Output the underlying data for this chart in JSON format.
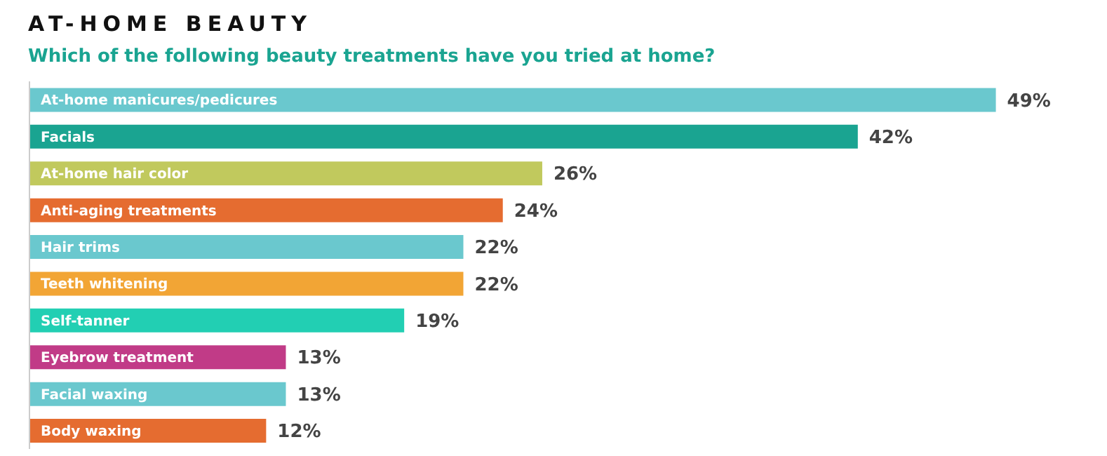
{
  "chart_data": {
    "type": "bar",
    "orientation": "horizontal",
    "title": "AT-HOME BEAUTY",
    "subtitle": "Which of the following beauty treatments have you tried at home?",
    "categories": [
      "At-home manicures/pedicures",
      "Facials",
      "At-home hair color",
      "Anti-aging treatments",
      "Hair trims",
      "Teeth whitening",
      "Self-tanner",
      "Eyebrow treatment",
      "Facial waxing",
      "Body waxing"
    ],
    "values": [
      49,
      42,
      26,
      24,
      22,
      22,
      19,
      13,
      13,
      12
    ],
    "value_labels": [
      "49%",
      "42%",
      "26%",
      "24%",
      "22%",
      "22%",
      "19%",
      "13%",
      "13%",
      "12%"
    ],
    "colors": [
      "#6ac8ce",
      "#1aa491",
      "#c1c95d",
      "#e56c30",
      "#6ac8ce",
      "#f2a535",
      "#22cfb3",
      "#c13b87",
      "#6ac8ce",
      "#e56c30"
    ],
    "grid": false,
    "legend": false
  }
}
